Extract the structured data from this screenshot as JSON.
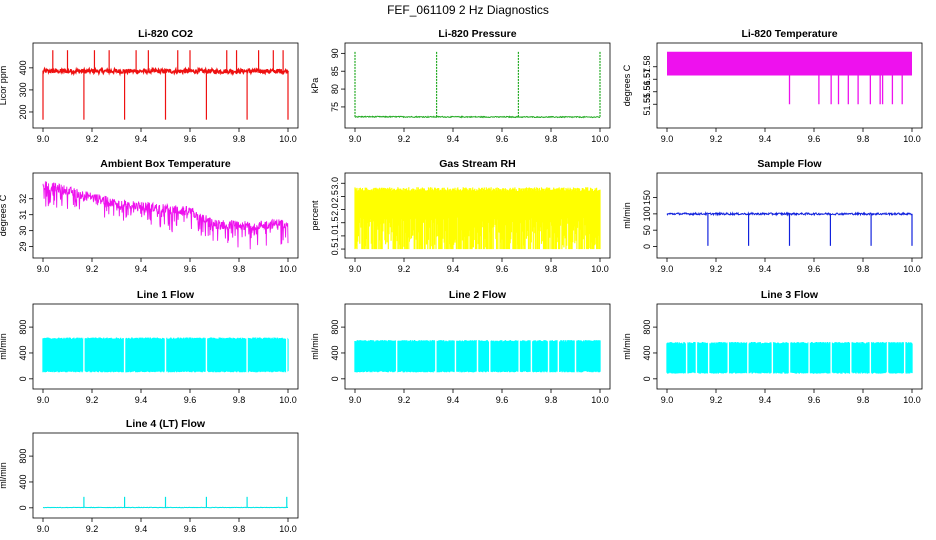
{
  "figure": {
    "title": "FEF_061109  2 Hz Diagnostics"
  },
  "chart_data": [
    {
      "id": "co2",
      "type": "line",
      "title": "Li-820 CO2",
      "ylabel": "Licor ppm",
      "color": "#ee1111",
      "xlim": [
        9.0,
        10.0
      ],
      "ylim": [
        150,
        490
      ],
      "xticks": [
        "9.0",
        "9.2",
        "9.4",
        "9.6",
        "9.8",
        "10.0"
      ],
      "yticks": [
        "200",
        "300",
        "400"
      ],
      "baseline": 385,
      "noise": 10,
      "spikes_up": 480,
      "events": [
        9.0,
        9.167,
        9.333,
        9.5,
        9.667,
        9.833,
        10.0
      ],
      "event_low": 165
    },
    {
      "id": "pressure",
      "type": "line",
      "title": "Li-820 Pressure",
      "ylabel": "kPa",
      "color": "#22aa22",
      "xlim": [
        9.0,
        10.0
      ],
      "ylim": [
        70.5,
        91.5
      ],
      "xticks": [
        "9.0",
        "9.2",
        "9.4",
        "9.6",
        "9.8",
        "10.0"
      ],
      "yticks": [
        "75",
        "80",
        "85",
        "90"
      ],
      "baseline": 72.2,
      "noise": 0.3,
      "events": [
        9.0,
        9.333,
        9.667,
        10.0
      ],
      "event_high": 90.5
    },
    {
      "id": "temp820",
      "type": "area",
      "title": "Li-820 Temperature",
      "ylabel": "degrees C",
      "color": "#ee11ee",
      "xlim": [
        9.0,
        10.0
      ],
      "ylim": [
        51.535,
        51.595
      ],
      "xticks": [
        "9.0",
        "9.2",
        "9.4",
        "9.6",
        "9.8",
        "10.0"
      ],
      "yticks": [
        "51.55",
        "51.56",
        "51.57",
        "51.58"
      ],
      "band": [
        51.573,
        51.592
      ],
      "drops": [
        9.5,
        9.62,
        9.67,
        9.7,
        9.74,
        9.78,
        9.83,
        9.87,
        9.88,
        9.92,
        9.96
      ],
      "drop_low": 51.55
    },
    {
      "id": "ambient",
      "type": "line",
      "title": "Ambient Box Temperature",
      "ylabel": "degrees C",
      "color": "#ee11ee",
      "xlim": [
        9.0,
        10.0
      ],
      "ylim": [
        28.6,
        33.3
      ],
      "xticks": [
        "9.0",
        "9.2",
        "9.4",
        "9.6",
        "9.8",
        "10.0"
      ],
      "yticks": [
        "29",
        "30",
        "31",
        "32"
      ],
      "trend": [
        [
          9.0,
          32.9
        ],
        [
          9.3,
          31.7
        ],
        [
          9.6,
          31.2
        ],
        [
          9.7,
          30.4
        ],
        [
          9.85,
          30.3
        ],
        [
          10.0,
          30.5
        ]
      ],
      "noise": 0.3,
      "drop": 1.2
    },
    {
      "id": "rh",
      "type": "area",
      "title": "Gas Stream RH",
      "ylabel": "percent",
      "color": "#ffff00",
      "xlim": [
        9.0,
        10.0
      ],
      "ylim": [
        0.35,
        3.2
      ],
      "xticks": [
        "9.0",
        "9.2",
        "9.4",
        "9.6",
        "9.8",
        "10.0"
      ],
      "yticks": [
        "0.5",
        "1.0",
        "1.5",
        "2.0",
        "2.5",
        "3.0"
      ],
      "band": [
        0.5,
        2.85
      ]
    },
    {
      "id": "sample",
      "type": "line",
      "title": "Sample Flow",
      "ylabel": "ml/min",
      "color": "#1122dd",
      "xlim": [
        9.0,
        10.0
      ],
      "ylim": [
        -20,
        210
      ],
      "xticks": [
        "9.0",
        "9.2",
        "9.4",
        "9.6",
        "9.8",
        "10.0"
      ],
      "yticks": [
        "0",
        "50",
        "100",
        "150"
      ],
      "baseline": 100,
      "noise": 3,
      "events": [
        9.167,
        9.333,
        9.5,
        9.667,
        9.833,
        10.0
      ],
      "event_low": 2
    },
    {
      "id": "line1",
      "type": "area",
      "title": "Line 1 Flow",
      "ylabel": "ml/min",
      "color": "#00ffff",
      "xlim": [
        9.0,
        10.0
      ],
      "ylim": [
        -80,
        1080
      ],
      "xticks": [
        "9.0",
        "9.2",
        "9.4",
        "9.6",
        "9.8",
        "10.0"
      ],
      "yticks": [
        "0",
        "400",
        "800"
      ],
      "band": [
        100,
        640
      ],
      "gaps": [
        9.167,
        9.333,
        9.5,
        9.667,
        9.833,
        9.995
      ]
    },
    {
      "id": "line2",
      "type": "area",
      "title": "Line 2 Flow",
      "ylabel": "ml/min",
      "color": "#00ffff",
      "xlim": [
        9.0,
        10.0
      ],
      "ylim": [
        -80,
        1080
      ],
      "xticks": [
        "9.0",
        "9.2",
        "9.4",
        "9.6",
        "9.8",
        "10.0"
      ],
      "yticks": [
        "0",
        "400",
        "800"
      ],
      "band": [
        100,
        600
      ],
      "gaps": [
        9.17,
        9.33,
        9.41,
        9.5,
        9.55,
        9.67,
        9.72,
        9.79,
        9.83,
        9.9
      ]
    },
    {
      "id": "line3",
      "type": "area",
      "title": "Line 3 Flow",
      "ylabel": "ml/min",
      "color": "#00ffff",
      "xlim": [
        9.0,
        10.0
      ],
      "ylim": [
        -80,
        1080
      ],
      "xticks": [
        "9.0",
        "9.2",
        "9.4",
        "9.6",
        "9.8",
        "10.0"
      ],
      "yticks": [
        "0",
        "400",
        "800"
      ],
      "band": [
        80,
        570
      ],
      "gaps": [
        9.08,
        9.12,
        9.17,
        9.25,
        9.33,
        9.43,
        9.5,
        9.58,
        9.67,
        9.75,
        9.83,
        9.9,
        9.97
      ]
    },
    {
      "id": "line4",
      "type": "line",
      "title": "Line 4 (LT) Flow",
      "ylabel": "ml/min",
      "color": "#00e5e5",
      "xlim": [
        9.0,
        10.0
      ],
      "ylim": [
        -80,
        1080
      ],
      "xticks": [
        "9.0",
        "9.2",
        "9.4",
        "9.6",
        "9.8",
        "10.0"
      ],
      "yticks": [
        "0",
        "400",
        "800"
      ],
      "baseline": 5,
      "noise": 3,
      "events": [
        9.167,
        9.333,
        9.5,
        9.667,
        9.833,
        9.995
      ],
      "event_high": 170
    }
  ]
}
